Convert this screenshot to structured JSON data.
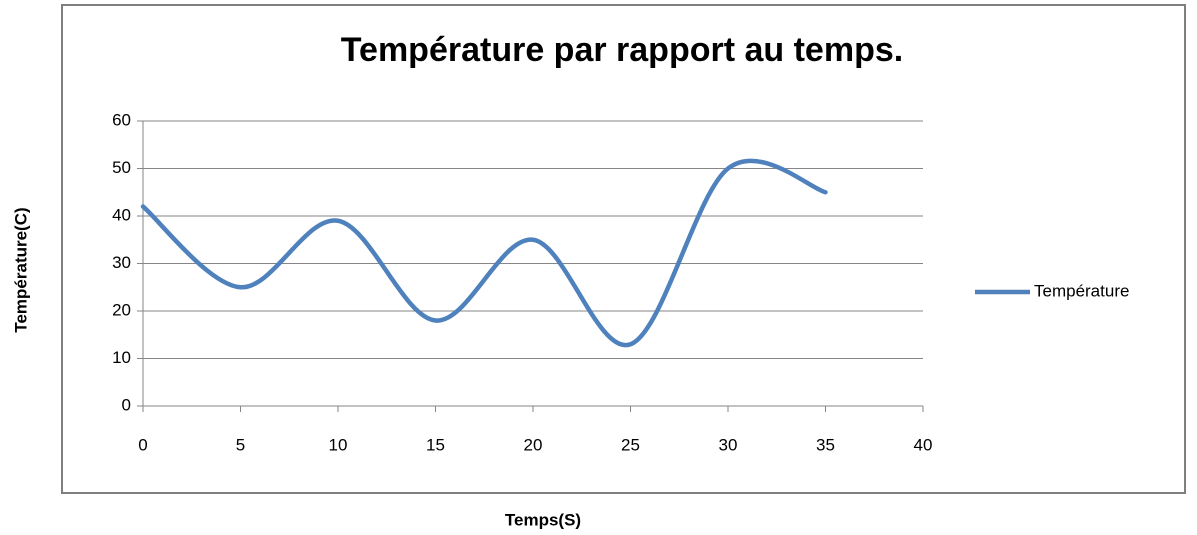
{
  "chart_data": {
    "type": "line",
    "title": "Température par rapport au temps.",
    "x_label": "Temps(S)",
    "y_label": "Température(C)",
    "x": [
      0,
      5,
      10,
      15,
      20,
      25,
      30,
      35
    ],
    "series": [
      {
        "name": "Température",
        "color": "#4f81bd",
        "values": [
          42,
          25,
          39,
          18,
          35,
          13,
          50,
          45
        ]
      }
    ],
    "xlim": [
      0,
      40
    ],
    "xticks": [
      0,
      5,
      10,
      15,
      20,
      25,
      30,
      35,
      40
    ],
    "ylim": [
      0,
      60
    ],
    "yticks": [
      0,
      10,
      20,
      30,
      40,
      50,
      60
    ],
    "grid": true,
    "smooth": true,
    "legend": "right"
  }
}
